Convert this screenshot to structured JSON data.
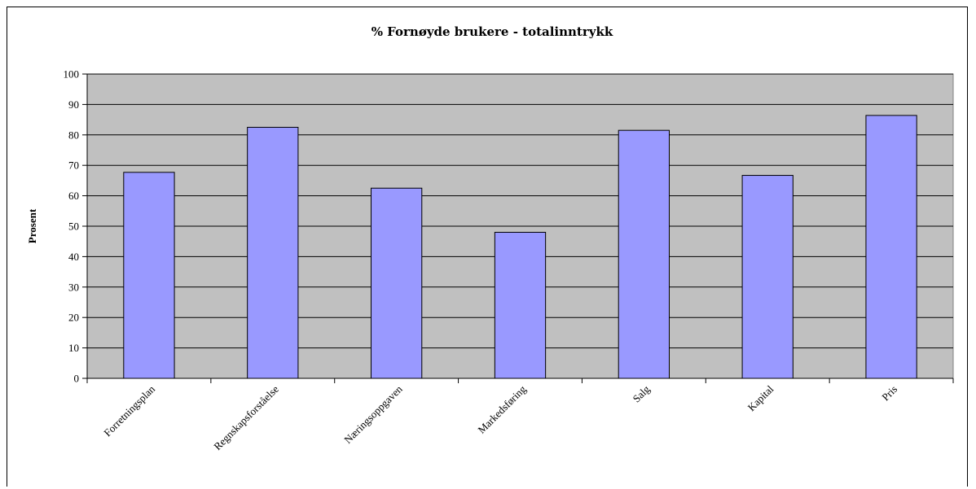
{
  "chart_data": {
    "type": "bar",
    "title": "% Fornøyde brukere - totalinntrykk",
    "xlabel": "",
    "ylabel": "Prosent",
    "ylim": [
      0,
      100
    ],
    "yticks": [
      "0",
      "10",
      "20",
      "30",
      "40",
      "50",
      "60",
      "70",
      "80",
      "90",
      "100"
    ],
    "categories": [
      "Forretningsplan",
      "Regnskapsforståelse",
      "Næringsoppgaven",
      "Markedsføring",
      "Salg",
      "Kapital",
      "Pris"
    ],
    "values": [
      67.7,
      82.5,
      62.5,
      48.0,
      81.5,
      66.7,
      86.4
    ],
    "grid": true,
    "legend": "none",
    "colors": {
      "bar": "#9999ff",
      "plot_bg": "#c0c0c0",
      "border": "#000000"
    }
  }
}
